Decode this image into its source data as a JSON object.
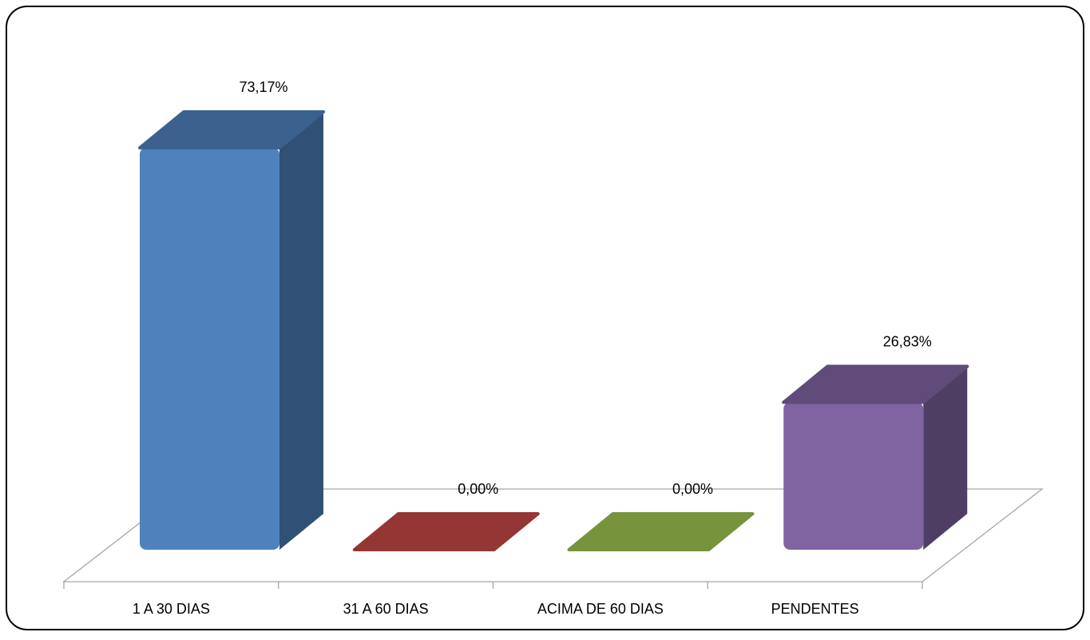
{
  "chart_data": {
    "type": "bar",
    "categories": [
      "1 A 30 DIAS",
      "31 A 60 DIAS",
      "ACIMA DE 60 DIAS",
      "PENDENTES"
    ],
    "values": [
      73.17,
      0,
      0,
      26.83
    ],
    "value_labels": [
      "73,17%",
      "0,00%",
      "0,00%",
      "26,83%"
    ],
    "colors": [
      "#4f81bd",
      "#943634",
      "#77933c",
      "#8064a2"
    ]
  }
}
